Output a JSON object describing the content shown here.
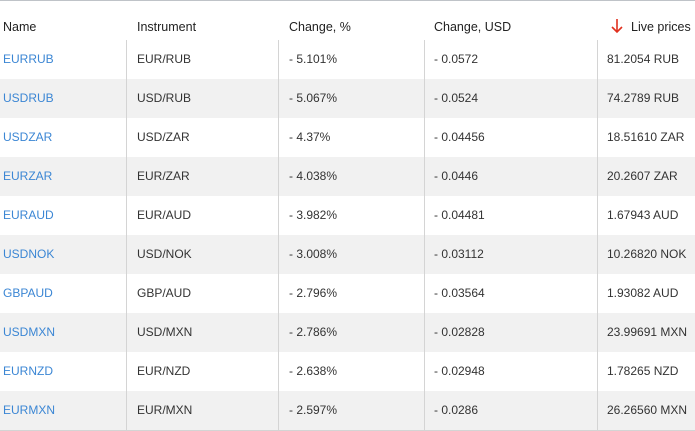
{
  "table": {
    "columns": [
      "Name",
      "Instrument",
      "Change, %",
      "Change, USD",
      "Live prices"
    ],
    "rows": [
      [
        "EURRUB",
        "EUR/RUB",
        "- 5.101%",
        "- 0.0572",
        "81.2054 RUB"
      ],
      [
        "USDRUB",
        "USD/RUB",
        "- 5.067%",
        "- 0.0524",
        "74.2789 RUB"
      ],
      [
        "USDZAR",
        "USD/ZAR",
        "- 4.37%",
        "- 0.04456",
        "18.51610 ZAR"
      ],
      [
        "EURZAR",
        "EUR/ZAR",
        "- 4.038%",
        "- 0.0446",
        "20.2607 ZAR"
      ],
      [
        "EURAUD",
        "EUR/AUD",
        "- 3.982%",
        "- 0.04481",
        "1.67943 AUD"
      ],
      [
        "USDNOK",
        "USD/NOK",
        "- 3.008%",
        "- 0.03112",
        "10.26820 NOK"
      ],
      [
        "GBPAUD",
        "GBP/AUD",
        "- 2.796%",
        "- 0.03564",
        "1.93082 AUD"
      ],
      [
        "USDMXN",
        "USD/MXN",
        "- 2.786%",
        "- 0.02828",
        "23.99691 MXN"
      ],
      [
        "EURNZD",
        "EUR/NZD",
        "- 2.638%",
        "- 0.02948",
        "1.78265 NZD"
      ],
      [
        "EURMXN",
        "EUR/MXN",
        "- 2.597%",
        "- 0.0286",
        "26.26560 MXN"
      ]
    ]
  }
}
